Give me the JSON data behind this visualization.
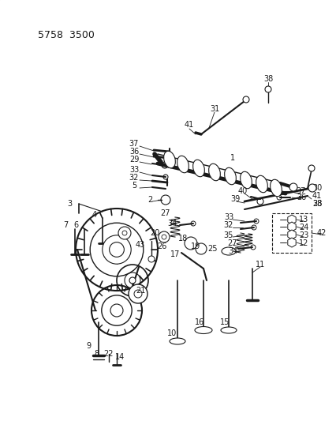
{
  "title": "5758 3500",
  "background_color": "#c8c8c8",
  "line_color": "#1a1a1a",
  "label_color": "#1a1a1a",
  "label_fontsize": 7,
  "title_fontsize": 9
}
